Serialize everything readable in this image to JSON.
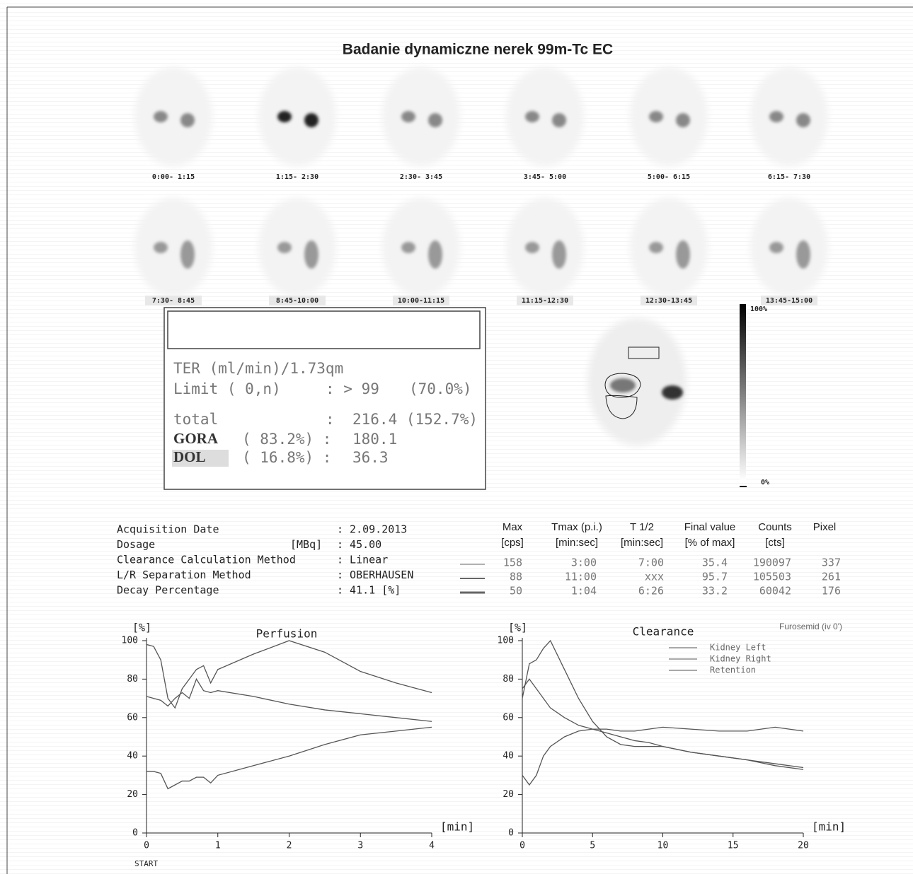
{
  "header": {
    "title": "Badanie dynamiczne nerek 99m-Tc EC"
  },
  "frames": [
    "0:00- 1:15",
    "1:15- 2:30",
    "2:30- 3:45",
    "3:45- 5:00",
    "5:00- 6:15",
    "6:15- 7:30",
    "7:30- 8:45",
    "8:45-10:00",
    "10:00-11:15",
    "11:15-12:30",
    "12:30-13:45",
    "13:45-15:00"
  ],
  "ter_box": {
    "heading": "TER (ml/min)/1.73qm",
    "rows": [
      [
        "Limit ( 0,n)",
        ": > 99",
        "(70.0%)"
      ],
      [
        "total",
        ":",
        "216.4 (152.7%)"
      ],
      [
        "GORA",
        "( 83.2%) :",
        "180.1"
      ],
      [
        "DOL",
        "( 16.8%) :",
        "36.3"
      ]
    ]
  },
  "colorbar": {
    "top": "100%",
    "bottom": "0%"
  },
  "acquisition": [
    {
      "label": "Acquisition Date",
      "value": ":  2.09.2013"
    },
    {
      "label": "Dosage",
      "unit": "[MBq]",
      "value": ": 45.00"
    },
    {
      "label": "Clearance Calculation Method",
      "value": ": Linear"
    },
    {
      "label": "L/R Separation Method",
      "value": ": OBERHAUSEN"
    },
    {
      "label": "Decay Percentage",
      "value": ":  41.1 [%]"
    }
  ],
  "table": {
    "headers": [
      [
        "Max",
        "[cps]"
      ],
      [
        "Tmax (p.i.)",
        "[min:sec]"
      ],
      [
        "T 1/2",
        "[min:sec]"
      ],
      [
        "Final value",
        "[% of max]"
      ],
      [
        "Counts",
        "[cts]"
      ],
      [
        "Pixel"
      ]
    ],
    "rows": [
      [
        158,
        "3:00",
        "7:00",
        35.4,
        190097,
        337
      ],
      [
        88,
        "11:00",
        "xxx",
        95.7,
        105503,
        261
      ],
      [
        50,
        "1:04",
        "6:26",
        33.2,
        60042,
        176
      ]
    ]
  },
  "chart_data": [
    {
      "type": "line",
      "title": "Perfusion",
      "y_label": "[%]",
      "x_label": "[min]",
      "annotation": "START",
      "x": [
        0,
        0.1,
        0.2,
        0.3,
        0.4,
        0.5,
        0.6,
        0.7,
        0.8,
        0.9,
        1,
        1.5,
        2,
        2.5,
        3,
        3.5,
        4
      ],
      "series": [
        {
          "color": "#555",
          "values": [
            98,
            97,
            90,
            70,
            65,
            75,
            80,
            85,
            87,
            78,
            85,
            93,
            100,
            94,
            84,
            78,
            73
          ]
        },
        {
          "color": "#555",
          "values": [
            71,
            70,
            69,
            66,
            70,
            73,
            70,
            80,
            74,
            73,
            74,
            71,
            67,
            64,
            62,
            60,
            58
          ]
        },
        {
          "color": "#555",
          "values": [
            32,
            32,
            31,
            23,
            25,
            27,
            27,
            29,
            29,
            26,
            30,
            35,
            40,
            46,
            51,
            53,
            55
          ]
        }
      ],
      "xlim": [
        0,
        4
      ],
      "ylim": [
        0,
        100
      ],
      "xticks": [
        0,
        1,
        2,
        3,
        4
      ],
      "yticks": [
        0,
        20,
        40,
        60,
        80,
        100
      ]
    },
    {
      "type": "line",
      "title": "Clearance",
      "y_label": "[%]",
      "x_label": "[min]",
      "annotation": "Furosemid (iv 0')",
      "x": [
        0,
        0.5,
        1,
        1.5,
        2,
        3,
        4,
        5,
        6,
        7,
        8,
        9,
        10,
        12,
        14,
        16,
        18,
        20
      ],
      "series": [
        {
          "name": "Kidney Left",
          "color": "#555",
          "values": [
            70,
            88,
            90,
            96,
            100,
            85,
            70,
            58,
            50,
            46,
            45,
            45,
            45,
            42,
            40,
            38,
            36,
            34
          ]
        },
        {
          "name": "Kidney Right",
          "color": "#555",
          "values": [
            75,
            80,
            75,
            70,
            65,
            60,
            56,
            54,
            52,
            50,
            48,
            47,
            45,
            42,
            40,
            38,
            35,
            33
          ]
        },
        {
          "name": "Retention",
          "color": "#555",
          "values": [
            30,
            25,
            30,
            40,
            45,
            50,
            53,
            54,
            54,
            53,
            53,
            54,
            55,
            54,
            53,
            53,
            55,
            53
          ]
        }
      ],
      "xlim": [
        0,
        20
      ],
      "ylim": [
        0,
        100
      ],
      "xticks": [
        0,
        5,
        10,
        15,
        20
      ],
      "yticks": [
        0,
        20,
        40,
        60,
        80,
        100
      ]
    }
  ]
}
